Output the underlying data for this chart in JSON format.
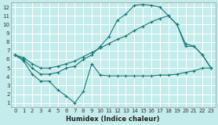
{
  "xlabel": "Humidex (Indice chaleur)",
  "bg_color": "#c5ecec",
  "grid_color": "#ffffff",
  "line_color": "#1a7878",
  "xlim": [
    -0.5,
    23.5
  ],
  "ylim": [
    0.5,
    12.5
  ],
  "xticks": [
    0,
    1,
    2,
    3,
    4,
    5,
    6,
    7,
    8,
    9,
    10,
    11,
    12,
    13,
    14,
    15,
    16,
    17,
    18,
    19,
    20,
    21,
    22,
    23
  ],
  "yticks": [
    1,
    2,
    3,
    4,
    5,
    6,
    7,
    8,
    9,
    10,
    11,
    12
  ],
  "line1_x": [
    0,
    1,
    2,
    3,
    4,
    5,
    6,
    7,
    8,
    9,
    10,
    11,
    12,
    13,
    14,
    15,
    16,
    17,
    18,
    19,
    20,
    21,
    22,
    23
  ],
  "line1_y": [
    6.5,
    5.8,
    4.3,
    3.5,
    3.5,
    2.5,
    1.8,
    1.0,
    2.3,
    5.5,
    4.2,
    4.1,
    4.1,
    4.1,
    4.1,
    4.1,
    4.1,
    4.2,
    4.2,
    4.3,
    4.5,
    4.7,
    5.0,
    5.0
  ],
  "line2_x": [
    0,
    1,
    2,
    3,
    4,
    5,
    6,
    7,
    8,
    9,
    10,
    11,
    12,
    13,
    14,
    15,
    16,
    17,
    18,
    19,
    20,
    21,
    22,
    23
  ],
  "line2_y": [
    6.5,
    6.0,
    5.0,
    4.3,
    4.3,
    4.5,
    5.0,
    5.2,
    6.0,
    6.5,
    7.5,
    8.6,
    10.5,
    11.2,
    12.2,
    12.3,
    12.2,
    12.0,
    11.0,
    10.0,
    7.5,
    7.5,
    6.5,
    5.0
  ],
  "line3_x": [
    0,
    1,
    2,
    3,
    4,
    5,
    6,
    7,
    8,
    9,
    10,
    11,
    12,
    13,
    14,
    15,
    16,
    17,
    18,
    19,
    20,
    21,
    22,
    23
  ],
  "line3_y": [
    6.5,
    6.2,
    5.5,
    5.0,
    5.0,
    5.2,
    5.5,
    5.8,
    6.3,
    6.8,
    7.3,
    7.8,
    8.3,
    8.7,
    9.3,
    9.8,
    10.3,
    10.7,
    11.0,
    10.0,
    7.8,
    7.5,
    6.5,
    5.0
  ]
}
